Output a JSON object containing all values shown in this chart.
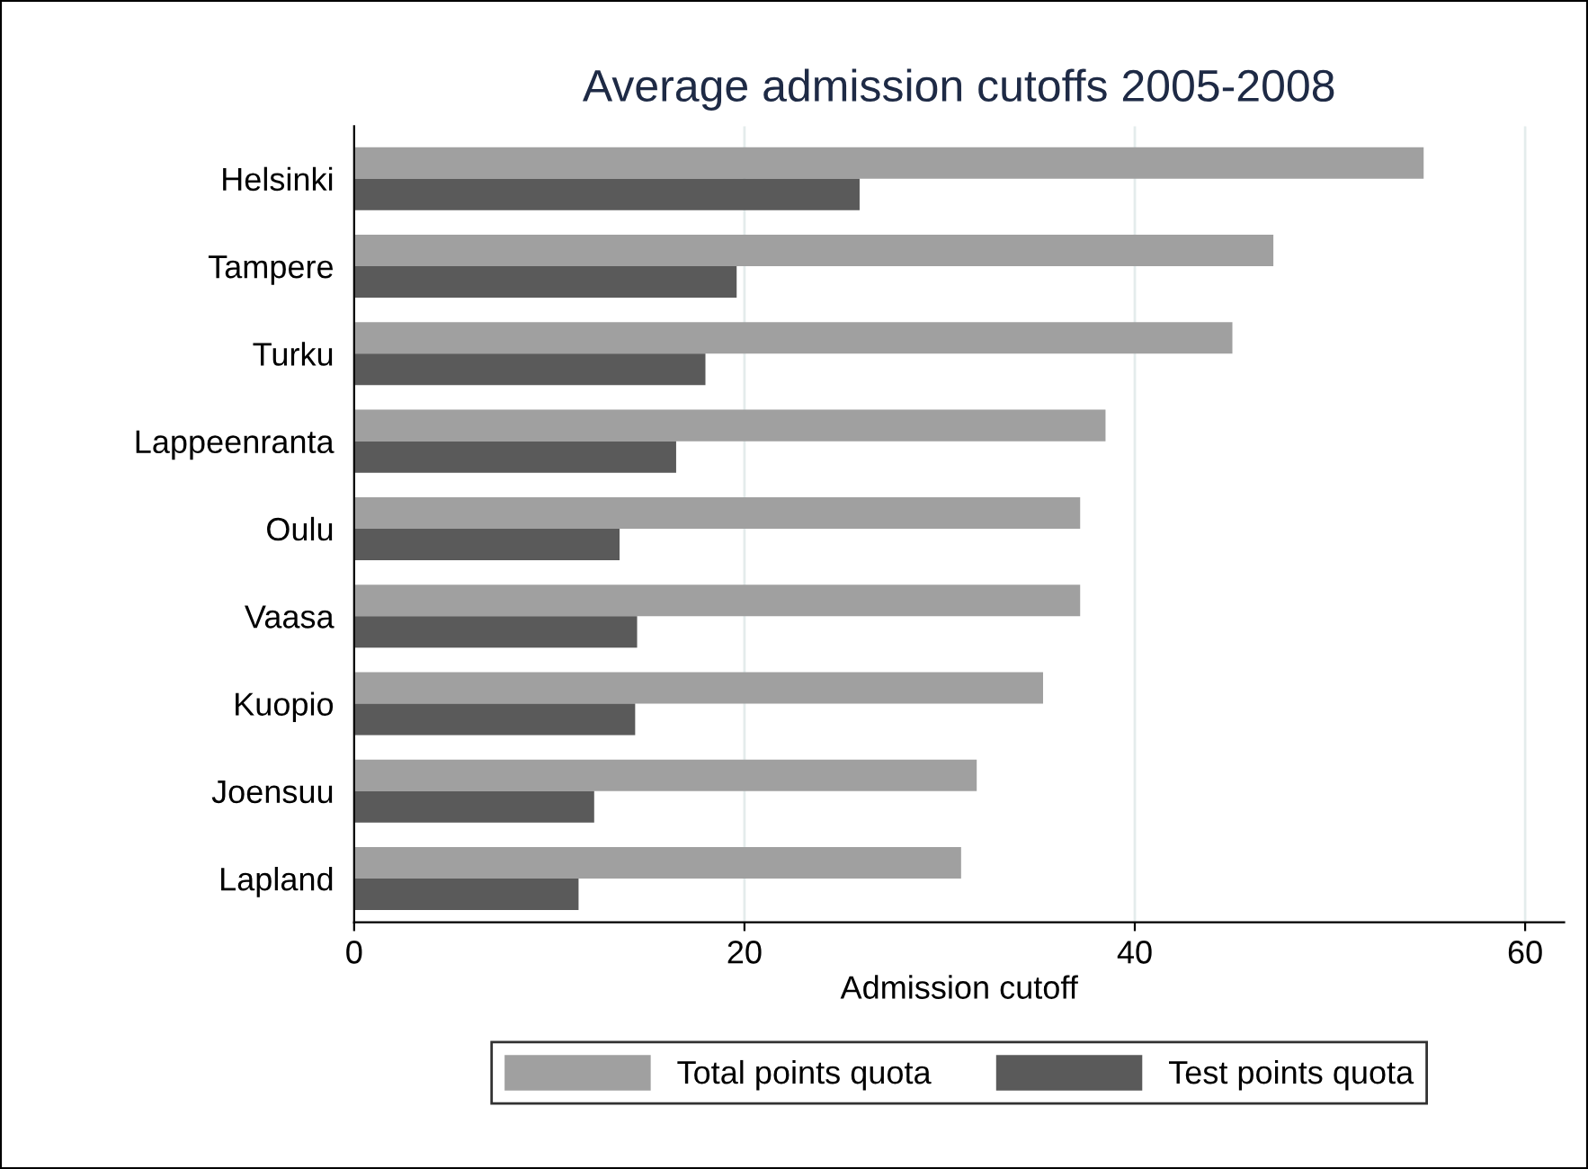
{
  "chart_data": {
    "type": "bar",
    "orientation": "horizontal",
    "title": "Average admission cutoffs 2005-2008",
    "xlabel": "Admission cutoff",
    "categories": [
      "Helsinki",
      "Tampere",
      "Turku",
      "Lappeenranta",
      "Oulu",
      "Vaasa",
      "Kuopio",
      "Joensuu",
      "Lapland"
    ],
    "series": [
      {
        "name": "Total points quota",
        "color": "#a0a0a0",
        "values": [
          54.8,
          47.1,
          45.0,
          38.5,
          37.2,
          37.2,
          35.3,
          31.9,
          31.1
        ]
      },
      {
        "name": "Test points quota",
        "color": "#5a5a5a",
        "values": [
          25.9,
          19.6,
          18.0,
          16.5,
          13.6,
          14.5,
          14.4,
          12.3,
          11.5
        ]
      }
    ],
    "xlim": [
      0,
      62
    ],
    "xticks": [
      0,
      20,
      40,
      60
    ],
    "grid": "x",
    "legend": "bottom"
  }
}
